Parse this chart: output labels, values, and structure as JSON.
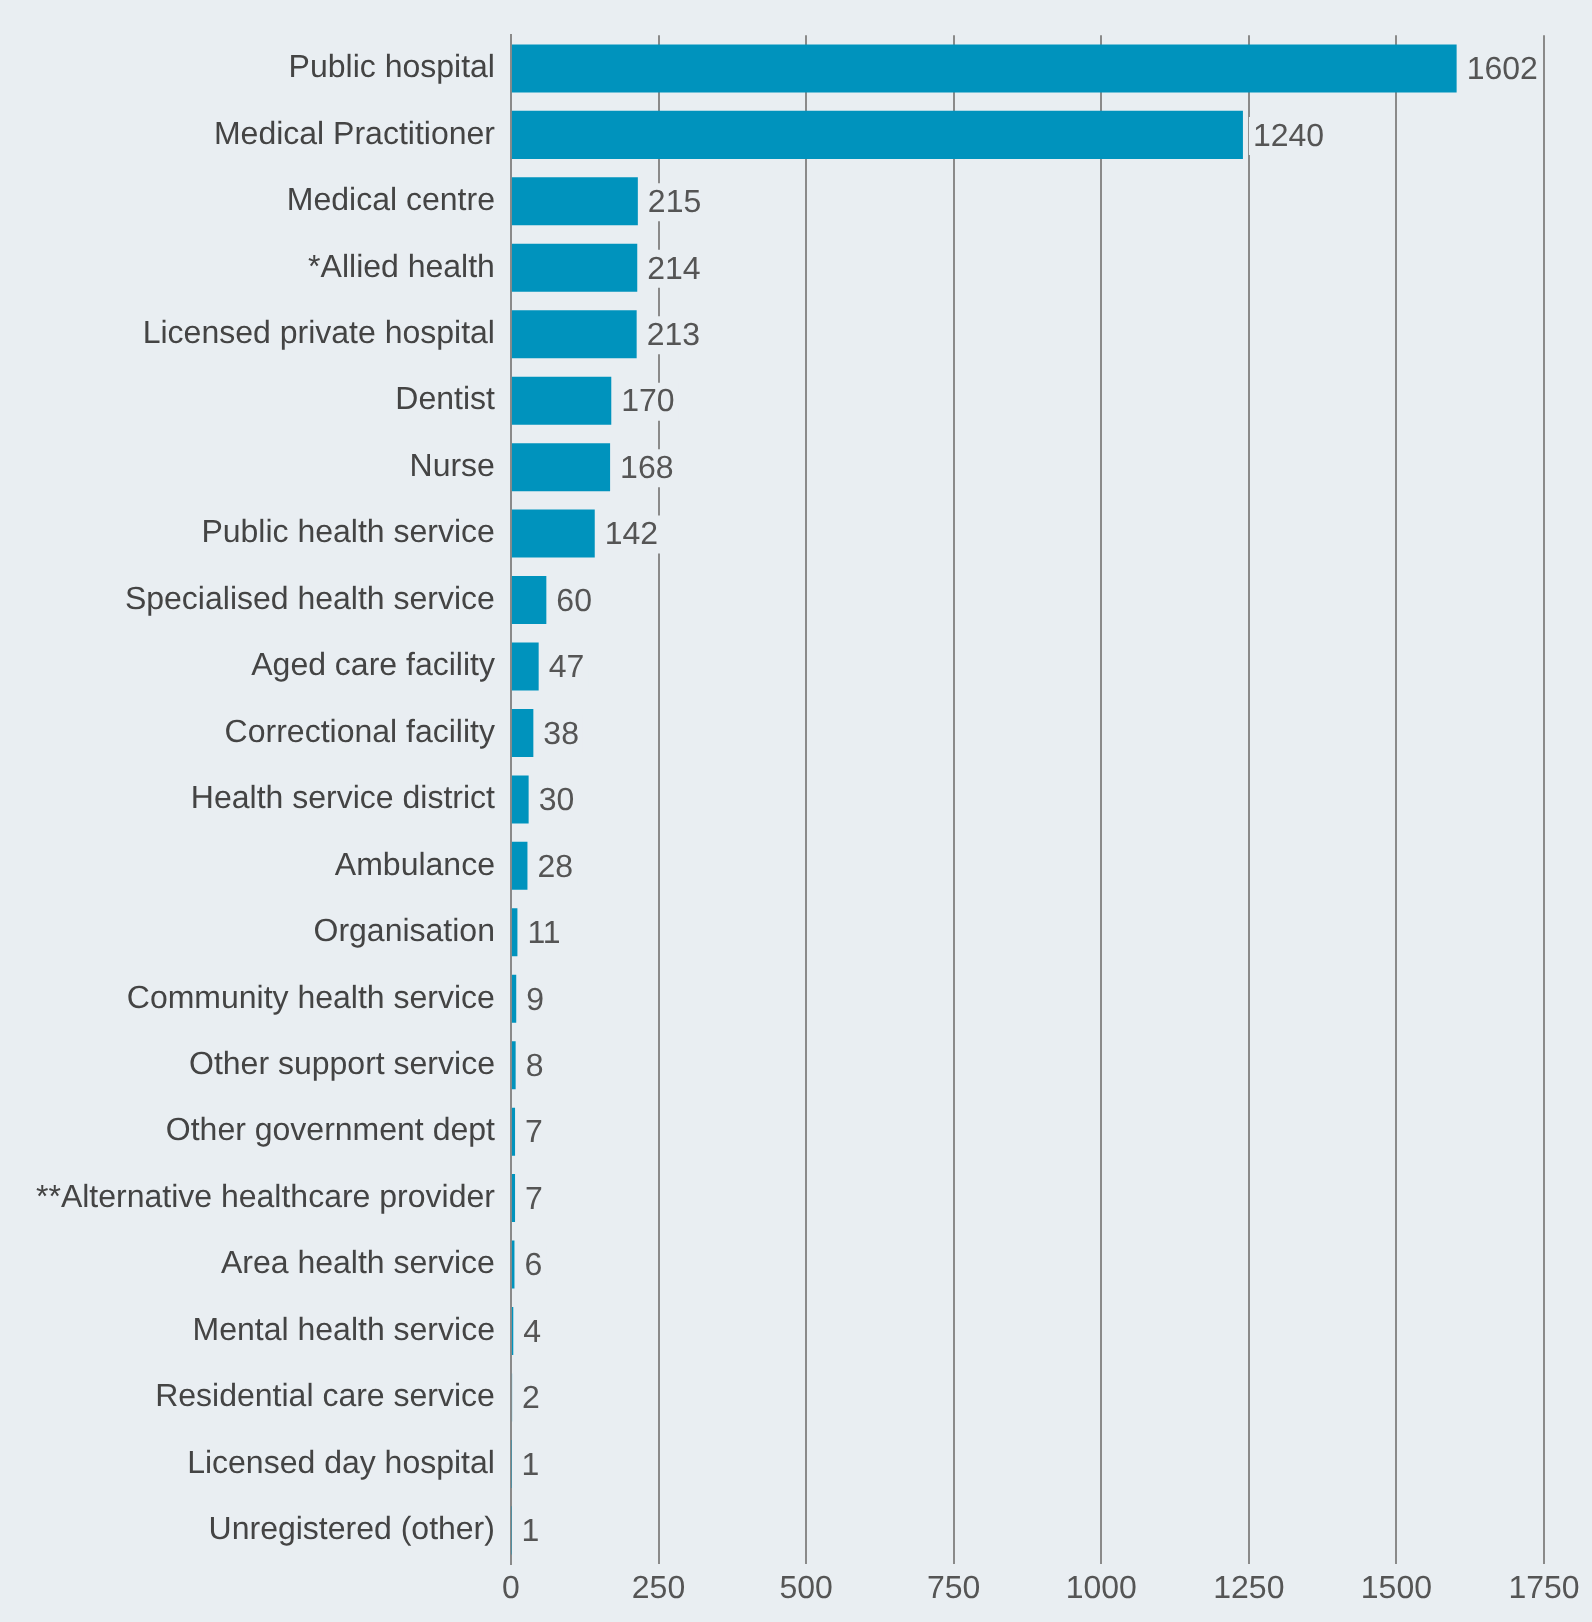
{
  "chart_data": {
    "type": "bar",
    "orientation": "horizontal",
    "categories": [
      "Public hospital",
      "Medical Practitioner",
      "Medical centre",
      "*Allied health",
      "Licensed private hospital",
      "Dentist",
      "Nurse",
      "Public health service",
      "Specialised health service",
      "Aged care facility",
      "Correctional facility",
      "Health service district",
      "Ambulance",
      "Organisation",
      "Community health service",
      "Other support service",
      "Other government dept",
      "**Alternative healthcare provider",
      "Area health service",
      "Mental health service",
      "Residential care service",
      "Licensed day hospital",
      "Unregistered (other)"
    ],
    "values": [
      1602,
      1240,
      215,
      214,
      213,
      170,
      168,
      142,
      60,
      47,
      38,
      30,
      28,
      11,
      9,
      8,
      7,
      7,
      6,
      4,
      2,
      1,
      1
    ],
    "color": "#0093bd",
    "xlim": [
      0,
      1750
    ],
    "xticks": [
      0,
      250,
      500,
      750,
      1000,
      1250,
      1500,
      1750
    ],
    "grid": "x",
    "data_labels": true
  }
}
